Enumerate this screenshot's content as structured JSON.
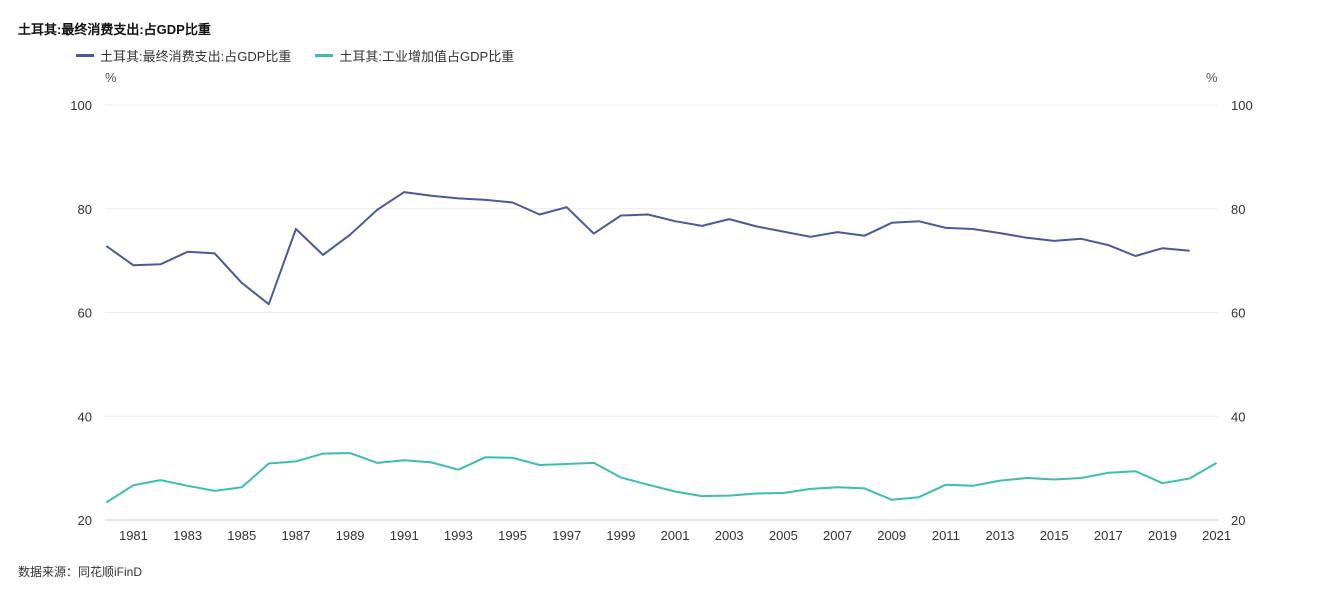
{
  "title": "土耳其:最终消费支出:占GDP比重",
  "source": "数据来源：同花顺iFinD",
  "chart_data": {
    "type": "line",
    "title": "土耳其:最终消费支出:占GDP比重",
    "ylabel_left": "%",
    "ylabel_right": "%",
    "ylim": [
      20,
      100
    ],
    "yticks": [
      20,
      40,
      60,
      80,
      100
    ],
    "x_tick_labels": [
      "1981",
      "1983",
      "1985",
      "1987",
      "1989",
      "1991",
      "1993",
      "1995",
      "1997",
      "1999",
      "2001",
      "2003",
      "2005",
      "2007",
      "2009",
      "2011",
      "2013",
      "2015",
      "2017",
      "2019",
      "2021"
    ],
    "x": [
      1980,
      1981,
      1982,
      1983,
      1984,
      1985,
      1986,
      1987,
      1988,
      1989,
      1990,
      1991,
      1992,
      1993,
      1994,
      1995,
      1996,
      1997,
      1998,
      1999,
      2000,
      2001,
      2002,
      2003,
      2004,
      2005,
      2006,
      2007,
      2008,
      2009,
      2010,
      2011,
      2012,
      2013,
      2014,
      2015,
      2016,
      2017,
      2018,
      2019,
      2020,
      2021
    ],
    "xlim": [
      1979.95,
      2021.05
    ],
    "series": [
      {
        "name": "土耳其:最终消费支出:占GDP比重",
        "color": "#4a5a96",
        "values": [
          72.8,
          69.1,
          69.3,
          71.7,
          71.4,
          65.7,
          61.6,
          76.1,
          71.1,
          75.0,
          79.8,
          83.2,
          82.5,
          82.0,
          81.7,
          81.2,
          78.9,
          80.3,
          75.2,
          78.7,
          78.9,
          77.6,
          76.7,
          78.0,
          76.6,
          75.6,
          74.6,
          75.5,
          74.8,
          77.3,
          77.6,
          76.3,
          76.1,
          75.3,
          74.4,
          73.8,
          74.2,
          73.0,
          70.9,
          72.4,
          71.9,
          null
        ]
      },
      {
        "name": "土耳其:工业增加值占GDP比重",
        "color": "#3dbdb0",
        "values": [
          23.4,
          26.7,
          27.7,
          26.6,
          25.6,
          26.3,
          30.9,
          31.3,
          32.8,
          32.9,
          31.0,
          31.5,
          31.1,
          29.7,
          32.1,
          32.0,
          30.6,
          30.8,
          31.0,
          28.2,
          26.8,
          25.5,
          24.6,
          24.7,
          25.1,
          25.2,
          26.0,
          26.3,
          26.1,
          23.9,
          24.4,
          26.8,
          26.6,
          27.6,
          28.1,
          27.8,
          28.1,
          29.1,
          29.4,
          27.1,
          28.0,
          31.0
        ]
      }
    ]
  }
}
